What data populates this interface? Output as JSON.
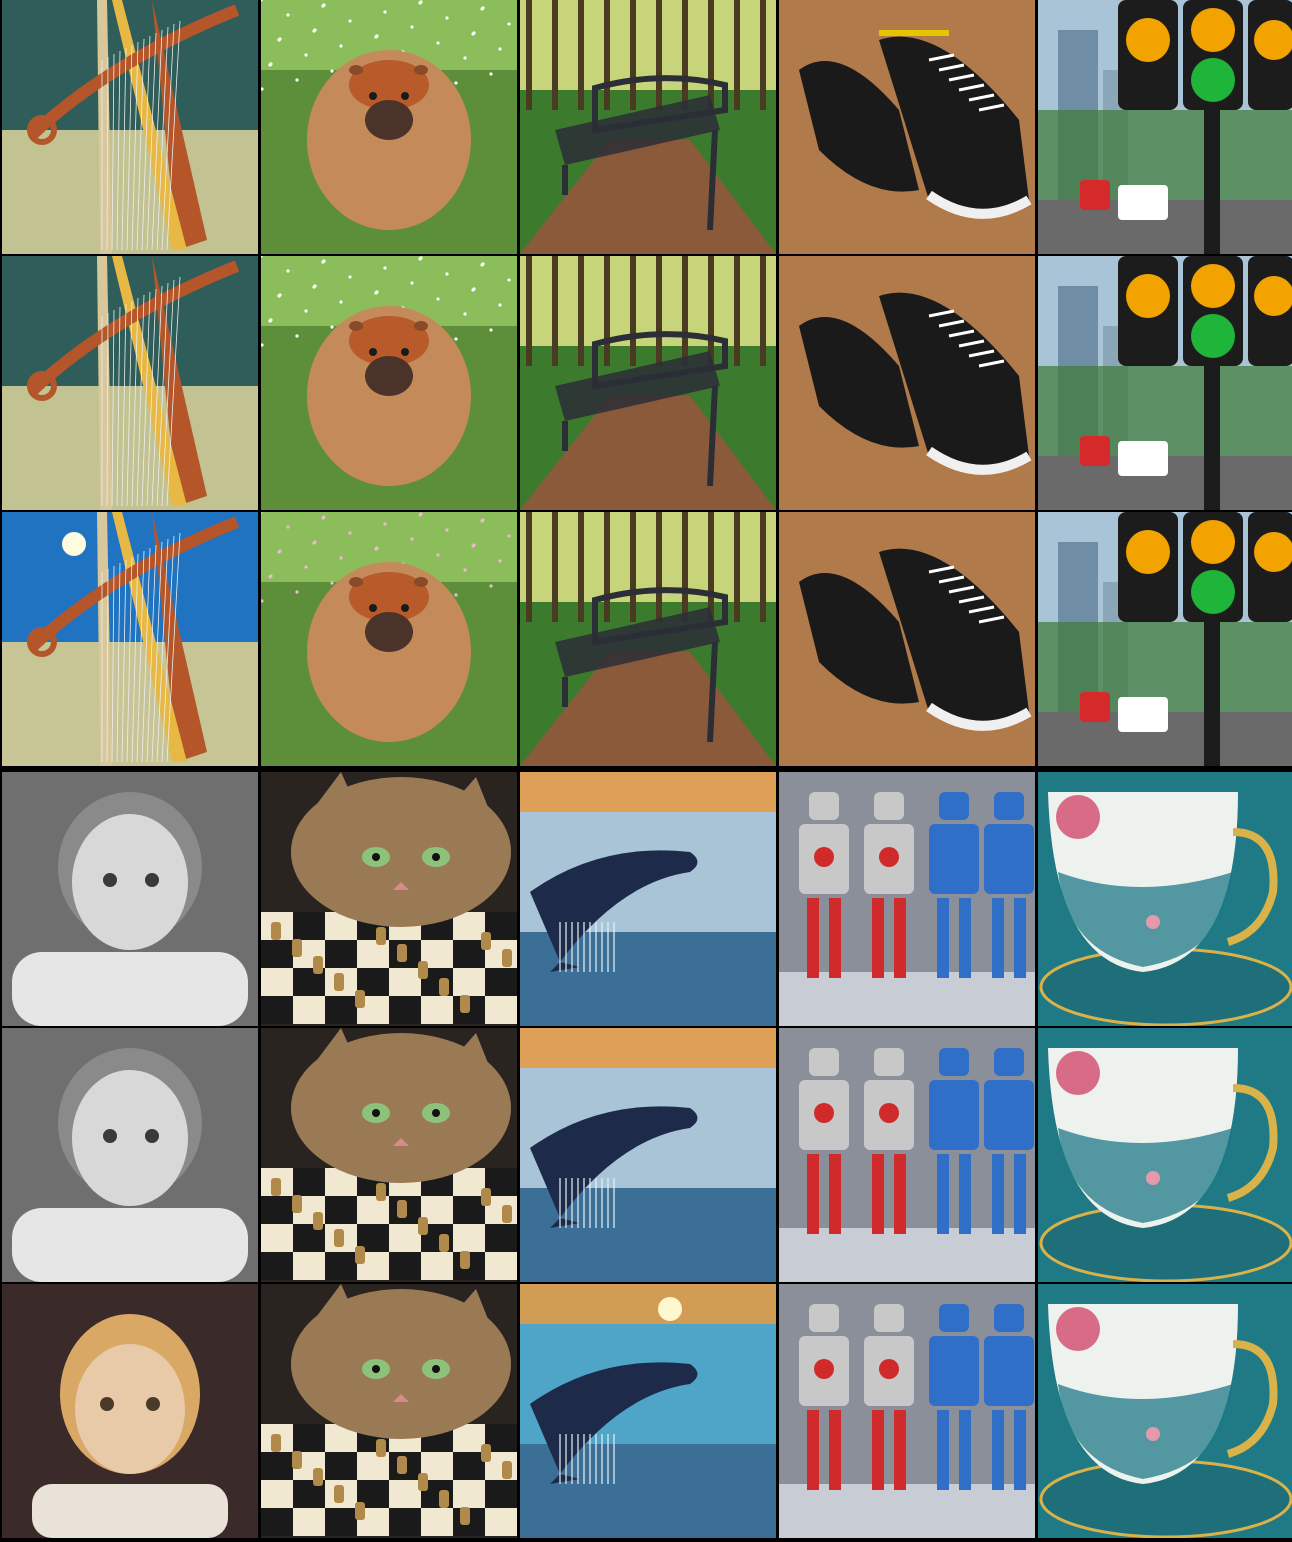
{
  "grid": {
    "columns": 5,
    "rows": 6,
    "groups": [
      {
        "name": "top",
        "subjects": [
          "harp",
          "capybara",
          "park-bench",
          "sneakers",
          "traffic-light"
        ],
        "variants": [
          "variant-1",
          "variant-2",
          "variant-3"
        ]
      },
      {
        "name": "bottom",
        "subjects": [
          "child-portrait",
          "cat-chessboard",
          "whale",
          "robots",
          "teacup"
        ],
        "variants": [
          "variant-1",
          "variant-2",
          "variant-3"
        ]
      }
    ]
  },
  "colors": {
    "harp_bg": "#2f5d5a",
    "harp_bg_alt": "#1f73c0",
    "harp_wood": "#b5562a",
    "capybara_fur": "#c48a5a",
    "grass": "#5d8f3a",
    "bench_iron": "#2b2e36",
    "path": "#8a5a3a",
    "sneaker_bg": "#b07a4a",
    "sneaker_black": "#1a1a1a",
    "sky": "#a9c4d6",
    "traffic_housing": "#1c1c1c",
    "amber": "#f2a300",
    "green": "#1fb53a",
    "pencil_gray": "#9a9a9a",
    "skin": "#e8c9a8",
    "cat_fur": "#9a7a55",
    "chess_light": "#f0e8d0",
    "chess_dark": "#1a1a1a",
    "sea": "#3c6f96",
    "sunset": "#e79a3f",
    "whale": "#1d2a4a",
    "robot_silver": "#c8c8c8",
    "robot_red": "#d12a2a",
    "robot_blue": "#2f6fc8",
    "teal": "#1f7a86",
    "rose": "#d86b86"
  }
}
